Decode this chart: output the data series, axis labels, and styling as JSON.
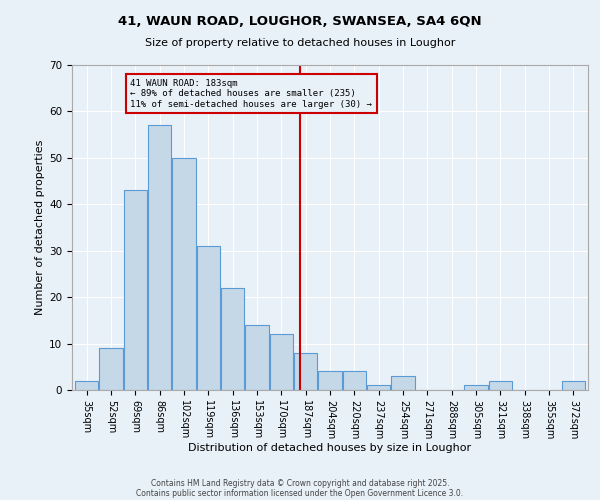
{
  "title": "41, WAUN ROAD, LOUGHOR, SWANSEA, SA4 6QN",
  "subtitle": "Size of property relative to detached houses in Loughor",
  "xlabel": "Distribution of detached houses by size in Loughor",
  "ylabel": "Number of detached properties",
  "bar_labels": [
    "35sqm",
    "52sqm",
    "69sqm",
    "86sqm",
    "102sqm",
    "119sqm",
    "136sqm",
    "153sqm",
    "170sqm",
    "187sqm",
    "204sqm",
    "220sqm",
    "237sqm",
    "254sqm",
    "271sqm",
    "288sqm",
    "305sqm",
    "321sqm",
    "338sqm",
    "355sqm",
    "372sqm"
  ],
  "bar_values": [
    2,
    9,
    43,
    57,
    50,
    31,
    22,
    14,
    12,
    8,
    4,
    4,
    1,
    3,
    0,
    0,
    1,
    2,
    0,
    0,
    2
  ],
  "bar_color": "#c5d8e8",
  "bar_edge_color": "#5b9bd5",
  "vline_color": "#cc0000",
  "annotation_title": "41 WAUN ROAD: 183sqm",
  "annotation_line1": "← 89% of detached houses are smaller (235)",
  "annotation_line2": "11% of semi-detached houses are larger (30) →",
  "annotation_box_color": "#cc0000",
  "ylim": [
    0,
    70
  ],
  "yticks": [
    0,
    10,
    20,
    30,
    40,
    50,
    60,
    70
  ],
  "background_color": "#e8f0f8",
  "footer_line1": "Contains HM Land Registry data © Crown copyright and database right 2025.",
  "footer_line2": "Contains public sector information licensed under the Open Government Licence 3.0."
}
